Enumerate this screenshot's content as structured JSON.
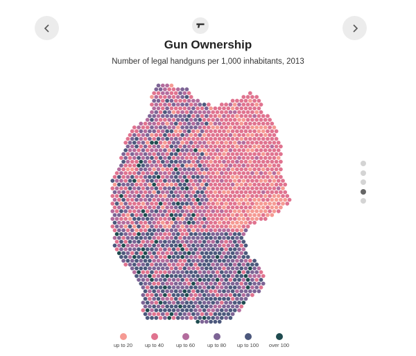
{
  "header": {
    "title": "Gun Ownership",
    "subtitle": "Number of legal handguns per 1,000 inhabitants, 2013",
    "topic_icon": "handgun-icon"
  },
  "navigation": {
    "prev_icon": "chevron-left-icon",
    "next_icon": "chevron-right-icon",
    "pages": 5,
    "active_page": 4
  },
  "map": {
    "region": "Germany",
    "style": "hexagonal-dot-grid"
  },
  "legend": [
    {
      "label": "up to 20",
      "color": "#f59a93"
    },
    {
      "label": "up to 40",
      "color": "#e0738f"
    },
    {
      "label": "up to 60",
      "color": "#b36c9d"
    },
    {
      "label": "up to 80",
      "color": "#7d6495"
    },
    {
      "label": "up to 100",
      "color": "#4c587c"
    },
    {
      "label": "over 100",
      "color": "#1f4b4f"
    }
  ]
}
